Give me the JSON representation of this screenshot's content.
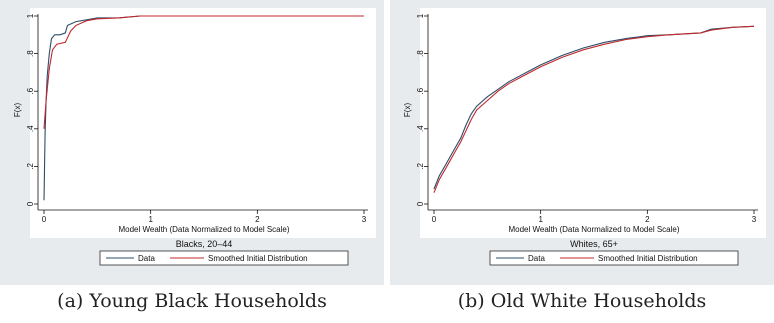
{
  "chart_data": [
    {
      "type": "line",
      "title": "Blacks, 20–44",
      "xlabel": "Model Wealth (Data Normalized to Model Scale)",
      "ylabel": "F(x)",
      "xlim": [
        0,
        3
      ],
      "ylim": [
        0,
        1
      ],
      "x_ticks": [
        "0",
        "1",
        "2",
        "3"
      ],
      "y_ticks": [
        "0",
        ".2",
        ".4",
        ".6",
        ".8",
        "1"
      ],
      "grid": false,
      "legend_position": "bottom",
      "series": [
        {
          "name": "Data",
          "color": "#2a4d69",
          "points": [
            [
              0,
              0.02
            ],
            [
              0.01,
              0.38
            ],
            [
              0.02,
              0.55
            ],
            [
              0.03,
              0.68
            ],
            [
              0.05,
              0.8
            ],
            [
              0.07,
              0.88
            ],
            [
              0.1,
              0.9
            ],
            [
              0.15,
              0.9
            ],
            [
              0.2,
              0.91
            ],
            [
              0.22,
              0.95
            ],
            [
              0.3,
              0.97
            ],
            [
              0.4,
              0.98
            ],
            [
              0.5,
              0.99
            ],
            [
              0.7,
              0.99
            ],
            [
              0.9,
              1.0
            ],
            [
              3.0,
              1.0
            ]
          ]
        },
        {
          "name": "Smoothed Initial Distribution",
          "color": "#c0282d",
          "points": [
            [
              0,
              0.4
            ],
            [
              0.02,
              0.55
            ],
            [
              0.05,
              0.72
            ],
            [
              0.08,
              0.82
            ],
            [
              0.12,
              0.85
            ],
            [
              0.2,
              0.86
            ],
            [
              0.25,
              0.92
            ],
            [
              0.3,
              0.95
            ],
            [
              0.4,
              0.975
            ],
            [
              0.5,
              0.985
            ],
            [
              0.7,
              0.99
            ],
            [
              0.9,
              1.0
            ],
            [
              3.0,
              1.0
            ]
          ]
        }
      ],
      "caption": "(a) Young Black Households"
    },
    {
      "type": "line",
      "title": "Whites, 65+",
      "xlabel": "Model Wealth (Data Normalized to Model Scale)",
      "ylabel": "F(x)",
      "xlim": [
        0,
        3
      ],
      "ylim": [
        0,
        1
      ],
      "x_ticks": [
        "0",
        "1",
        "2",
        "3"
      ],
      "y_ticks": [
        "0",
        ".2",
        ".4",
        ".6",
        ".8",
        "1"
      ],
      "grid": false,
      "legend_position": "bottom",
      "series": [
        {
          "name": "Data",
          "color": "#2a4d69",
          "points": [
            [
              0,
              0.08
            ],
            [
              0.05,
              0.15
            ],
            [
              0.1,
              0.2
            ],
            [
              0.15,
              0.25
            ],
            [
              0.2,
              0.3
            ],
            [
              0.25,
              0.35
            ],
            [
              0.3,
              0.42
            ],
            [
              0.35,
              0.48
            ],
            [
              0.4,
              0.52
            ],
            [
              0.5,
              0.57
            ],
            [
              0.6,
              0.61
            ],
            [
              0.7,
              0.65
            ],
            [
              0.8,
              0.68
            ],
            [
              0.9,
              0.71
            ],
            [
              1.0,
              0.74
            ],
            [
              1.2,
              0.79
            ],
            [
              1.4,
              0.83
            ],
            [
              1.6,
              0.86
            ],
            [
              1.8,
              0.88
            ],
            [
              2.0,
              0.895
            ],
            [
              2.2,
              0.9
            ],
            [
              2.5,
              0.91
            ],
            [
              2.6,
              0.93
            ],
            [
              2.8,
              0.94
            ],
            [
              3.0,
              0.945
            ]
          ]
        },
        {
          "name": "Smoothed Initial Distribution",
          "color": "#c0282d",
          "points": [
            [
              0,
              0.06
            ],
            [
              0.05,
              0.13
            ],
            [
              0.1,
              0.18
            ],
            [
              0.15,
              0.23
            ],
            [
              0.2,
              0.28
            ],
            [
              0.25,
              0.33
            ],
            [
              0.3,
              0.39
            ],
            [
              0.35,
              0.45
            ],
            [
              0.4,
              0.5
            ],
            [
              0.5,
              0.55
            ],
            [
              0.6,
              0.6
            ],
            [
              0.7,
              0.64
            ],
            [
              0.8,
              0.67
            ],
            [
              0.9,
              0.7
            ],
            [
              1.0,
              0.73
            ],
            [
              1.2,
              0.78
            ],
            [
              1.4,
              0.82
            ],
            [
              1.6,
              0.85
            ],
            [
              1.8,
              0.875
            ],
            [
              2.0,
              0.89
            ],
            [
              2.2,
              0.9
            ],
            [
              2.5,
              0.91
            ],
            [
              2.6,
              0.925
            ],
            [
              2.8,
              0.94
            ],
            [
              3.0,
              0.945
            ]
          ]
        }
      ],
      "caption": "(b) Old White Households"
    }
  ]
}
